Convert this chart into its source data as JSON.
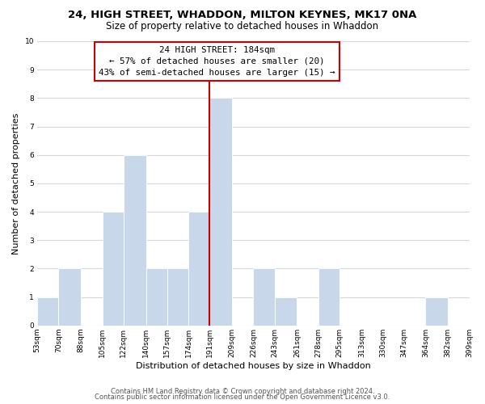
{
  "title": "24, HIGH STREET, WHADDON, MILTON KEYNES, MK17 0NA",
  "subtitle": "Size of property relative to detached houses in Whaddon",
  "xlabel": "Distribution of detached houses by size in Whaddon",
  "ylabel": "Number of detached properties",
  "bin_edges": [
    53,
    70,
    88,
    105,
    122,
    140,
    157,
    174,
    191,
    209,
    226,
    243,
    261,
    278,
    295,
    313,
    330,
    347,
    364,
    382,
    399
  ],
  "bin_labels": [
    "53sqm",
    "70sqm",
    "88sqm",
    "105sqm",
    "122sqm",
    "140sqm",
    "157sqm",
    "174sqm",
    "191sqm",
    "209sqm",
    "226sqm",
    "243sqm",
    "261sqm",
    "278sqm",
    "295sqm",
    "313sqm",
    "330sqm",
    "347sqm",
    "364sqm",
    "382sqm",
    "399sqm"
  ],
  "counts": [
    1,
    2,
    0,
    4,
    6,
    2,
    2,
    4,
    8,
    0,
    2,
    1,
    0,
    2,
    0,
    0,
    0,
    0,
    1,
    0
  ],
  "bar_color": "#c8d8ea",
  "bar_edgecolor": "#ffffff",
  "property_line_color": "#cc0000",
  "annotation_line1": "24 HIGH STREET: 184sqm",
  "annotation_line2": "← 57% of detached houses are smaller (20)",
  "annotation_line3": "43% of semi-detached houses are larger (15) →",
  "annotation_box_edgecolor": "#cc0000",
  "annotation_box_facecolor": "#ffffff",
  "ylim": [
    0,
    10
  ],
  "yticks": [
    0,
    1,
    2,
    3,
    4,
    5,
    6,
    7,
    8,
    9,
    10
  ],
  "footer_line1": "Contains HM Land Registry data © Crown copyright and database right 2024.",
  "footer_line2": "Contains public sector information licensed under the Open Government Licence v3.0.",
  "bg_color": "#ffffff",
  "grid_color": "#d0d8e0",
  "title_fontsize": 9.5,
  "subtitle_fontsize": 8.5,
  "axis_label_fontsize": 8,
  "tick_fontsize": 6.5,
  "annotation_fontsize": 7.8,
  "footer_fontsize": 6
}
